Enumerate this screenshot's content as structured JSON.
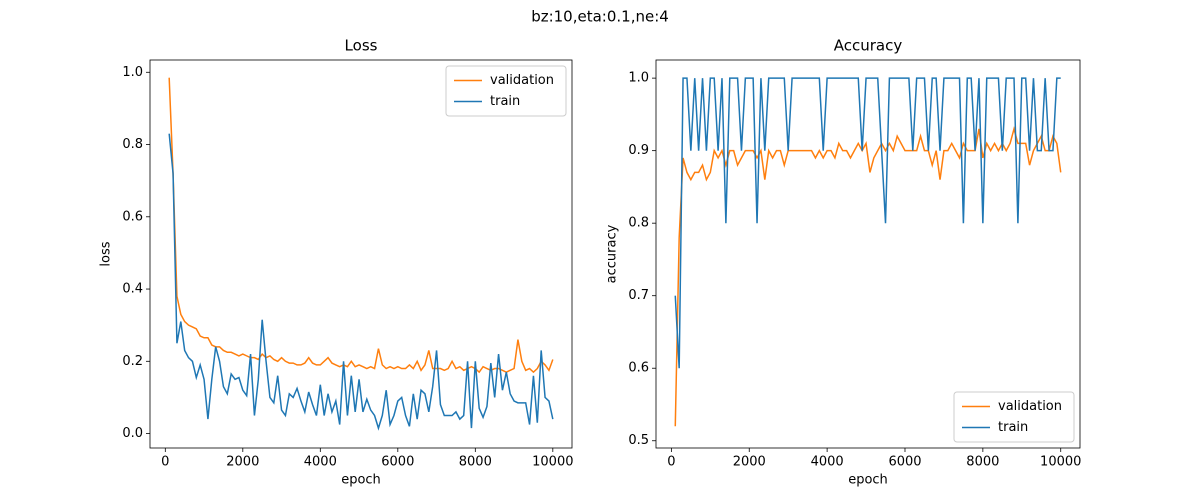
{
  "title": "bz:10,eta:0.1,ne:4",
  "chart_data": [
    {
      "type": "line",
      "title": "Loss",
      "xlabel": "epoch",
      "ylabel": "loss",
      "legend": "upper right",
      "x": [
        100,
        200,
        300,
        400,
        500,
        600,
        700,
        800,
        900,
        1000,
        1100,
        1200,
        1300,
        1400,
        1500,
        1600,
        1700,
        1800,
        1900,
        2000,
        2100,
        2200,
        2300,
        2400,
        2500,
        2600,
        2700,
        2800,
        2900,
        3000,
        3100,
        3200,
        3300,
        3400,
        3500,
        3600,
        3700,
        3800,
        3900,
        4000,
        4100,
        4200,
        4300,
        4400,
        4500,
        4600,
        4700,
        4800,
        4900,
        5000,
        5100,
        5200,
        5300,
        5400,
        5500,
        5600,
        5700,
        5800,
        5900,
        6000,
        6100,
        6200,
        6300,
        6400,
        6500,
        6600,
        6700,
        6800,
        6900,
        7000,
        7100,
        7200,
        7300,
        7400,
        7500,
        7600,
        7700,
        7800,
        7900,
        8000,
        8100,
        8200,
        8300,
        8400,
        8500,
        8600,
        8700,
        8800,
        8900,
        9000,
        9100,
        9200,
        9300,
        9400,
        9500,
        9600,
        9700,
        9800,
        9900,
        10000
      ],
      "xlim": [
        -395,
        10495
      ],
      "xticks": [
        0,
        2000,
        4000,
        6000,
        8000,
        10000
      ],
      "ylim": [
        -0.04,
        1.034
      ],
      "yticks": [
        {
          "value": 0,
          "label": "0.0"
        },
        0.2,
        0.4,
        0.6,
        0.8,
        {
          "value": 1,
          "label": "1.0"
        }
      ],
      "series": [
        {
          "name": "validation",
          "color": "#ff7f0e",
          "values": [
            0.985,
            0.72,
            0.38,
            0.33,
            0.31,
            0.3,
            0.295,
            0.29,
            0.27,
            0.265,
            0.265,
            0.245,
            0.24,
            0.24,
            0.23,
            0.225,
            0.225,
            0.22,
            0.215,
            0.22,
            0.215,
            0.21,
            0.21,
            0.205,
            0.22,
            0.21,
            0.215,
            0.205,
            0.2,
            0.21,
            0.2,
            0.195,
            0.195,
            0.19,
            0.19,
            0.195,
            0.21,
            0.195,
            0.19,
            0.19,
            0.2,
            0.21,
            0.195,
            0.19,
            0.185,
            0.19,
            0.185,
            0.2,
            0.185,
            0.19,
            0.185,
            0.18,
            0.185,
            0.18,
            0.235,
            0.19,
            0.18,
            0.185,
            0.18,
            0.185,
            0.18,
            0.18,
            0.19,
            0.18,
            0.2,
            0.175,
            0.19,
            0.23,
            0.18,
            0.18,
            0.18,
            0.175,
            0.18,
            0.2,
            0.18,
            0.185,
            0.175,
            0.18,
            0.185,
            0.18,
            0.17,
            0.185,
            0.18,
            0.175,
            0.18,
            0.18,
            0.175,
            0.17,
            0.175,
            0.18,
            0.26,
            0.2,
            0.175,
            0.18,
            0.17,
            0.18,
            0.2,
            0.19,
            0.175,
            0.205
          ]
        },
        {
          "name": "train",
          "color": "#1f77b4",
          "values": [
            0.83,
            0.72,
            0.25,
            0.31,
            0.23,
            0.21,
            0.2,
            0.155,
            0.19,
            0.15,
            0.04,
            0.15,
            0.24,
            0.2,
            0.13,
            0.11,
            0.165,
            0.15,
            0.155,
            0.12,
            0.105,
            0.22,
            0.05,
            0.15,
            0.315,
            0.2,
            0.1,
            0.085,
            0.16,
            0.065,
            0.05,
            0.11,
            0.1,
            0.125,
            0.09,
            0.06,
            0.115,
            0.08,
            0.05,
            0.135,
            0.05,
            0.11,
            0.06,
            0.09,
            0.025,
            0.2,
            0.05,
            0.16,
            0.06,
            0.15,
            0.06,
            0.095,
            0.065,
            0.05,
            0.015,
            0.05,
            0.12,
            0.025,
            0.05,
            0.09,
            0.1,
            0.05,
            0.02,
            0.11,
            0.04,
            0.12,
            0.11,
            0.06,
            0.13,
            0.23,
            0.08,
            0.05,
            0.05,
            0.05,
            0.06,
            0.04,
            0.05,
            0.2,
            0.015,
            0.2,
            0.07,
            0.045,
            0.075,
            0.195,
            0.1,
            0.22,
            0.12,
            0.17,
            0.11,
            0.09,
            0.085,
            0.085,
            0.085,
            0.025,
            0.16,
            0.03,
            0.23,
            0.1,
            0.09,
            0.04
          ]
        }
      ]
    },
    {
      "type": "line",
      "title": "Accuracy",
      "xlabel": "epoch",
      "ylabel": "accuracy",
      "legend": "lower right",
      "x": [
        100,
        200,
        300,
        400,
        500,
        600,
        700,
        800,
        900,
        1000,
        1100,
        1200,
        1300,
        1400,
        1500,
        1600,
        1700,
        1800,
        1900,
        2000,
        2100,
        2200,
        2300,
        2400,
        2500,
        2600,
        2700,
        2800,
        2900,
        3000,
        3100,
        3200,
        3300,
        3400,
        3500,
        3600,
        3700,
        3800,
        3900,
        4000,
        4100,
        4200,
        4300,
        4400,
        4500,
        4600,
        4700,
        4800,
        4900,
        5000,
        5100,
        5200,
        5300,
        5400,
        5500,
        5600,
        5700,
        5800,
        5900,
        6000,
        6100,
        6200,
        6300,
        6400,
        6500,
        6600,
        6700,
        6800,
        6900,
        7000,
        7100,
        7200,
        7300,
        7400,
        7500,
        7600,
        7700,
        7800,
        7900,
        8000,
        8100,
        8200,
        8300,
        8400,
        8500,
        8600,
        8700,
        8800,
        8900,
        9000,
        9100,
        9200,
        9300,
        9400,
        9500,
        9600,
        9700,
        9800,
        9900,
        10000
      ],
      "xlim": [
        -395,
        10495
      ],
      "xticks": [
        0,
        2000,
        4000,
        6000,
        8000,
        10000
      ],
      "ylim": [
        0.49,
        1.025
      ],
      "yticks": [
        0.5,
        0.6,
        0.7,
        0.8,
        0.9,
        {
          "value": 1,
          "label": "1.0"
        }
      ],
      "series": [
        {
          "name": "validation",
          "color": "#ff7f0e",
          "values": [
            0.52,
            0.78,
            0.89,
            0.87,
            0.86,
            0.87,
            0.87,
            0.88,
            0.86,
            0.87,
            0.9,
            0.89,
            0.9,
            0.88,
            0.9,
            0.9,
            0.88,
            0.89,
            0.9,
            0.9,
            0.9,
            0.89,
            0.9,
            0.86,
            0.9,
            0.89,
            0.9,
            0.9,
            0.88,
            0.9,
            0.9,
            0.9,
            0.9,
            0.9,
            0.9,
            0.9,
            0.89,
            0.9,
            0.89,
            0.9,
            0.9,
            0.89,
            0.91,
            0.9,
            0.9,
            0.89,
            0.9,
            0.91,
            0.9,
            0.91,
            0.87,
            0.89,
            0.9,
            0.91,
            0.9,
            0.91,
            0.9,
            0.92,
            0.91,
            0.9,
            0.9,
            0.9,
            0.9,
            0.92,
            0.9,
            0.9,
            0.88,
            0.9,
            0.86,
            0.9,
            0.9,
            0.91,
            0.9,
            0.89,
            0.91,
            0.9,
            0.9,
            0.9,
            0.93,
            0.89,
            0.91,
            0.9,
            0.91,
            0.9,
            0.91,
            0.9,
            0.91,
            0.93,
            0.91,
            0.91,
            0.91,
            0.88,
            0.9,
            0.91,
            0.92,
            0.9,
            0.9,
            0.92,
            0.91,
            0.87
          ]
        },
        {
          "name": "train",
          "color": "#1f77b4",
          "values": [
            0.7,
            0.6,
            1,
            1,
            0.9,
            1,
            0.9,
            1,
            0.9,
            1,
            1,
            0.9,
            1,
            0.8,
            1,
            1,
            1,
            0.9,
            1,
            1,
            1,
            0.8,
            1,
            0.9,
            1,
            1,
            1,
            1,
            1,
            0.9,
            1,
            1,
            1,
            1,
            1,
            1,
            1,
            1,
            0.9,
            1,
            1,
            1,
            1,
            1,
            1,
            1,
            1,
            1,
            0.9,
            1,
            1,
            1,
            1,
            0.9,
            0.8,
            1,
            1,
            1,
            1,
            1,
            1,
            0.9,
            1,
            1,
            1,
            0.9,
            1,
            1,
            0.9,
            1,
            1,
            1,
            1,
            1,
            0.8,
            1,
            1,
            0.9,
            1,
            0.8,
            1,
            1,
            1,
            1,
            0.9,
            1,
            1,
            1,
            0.8,
            1,
            1,
            0.9,
            1,
            0.9,
            0.9,
            1,
            0.9,
            0.9,
            1,
            1
          ]
        }
      ]
    }
  ]
}
